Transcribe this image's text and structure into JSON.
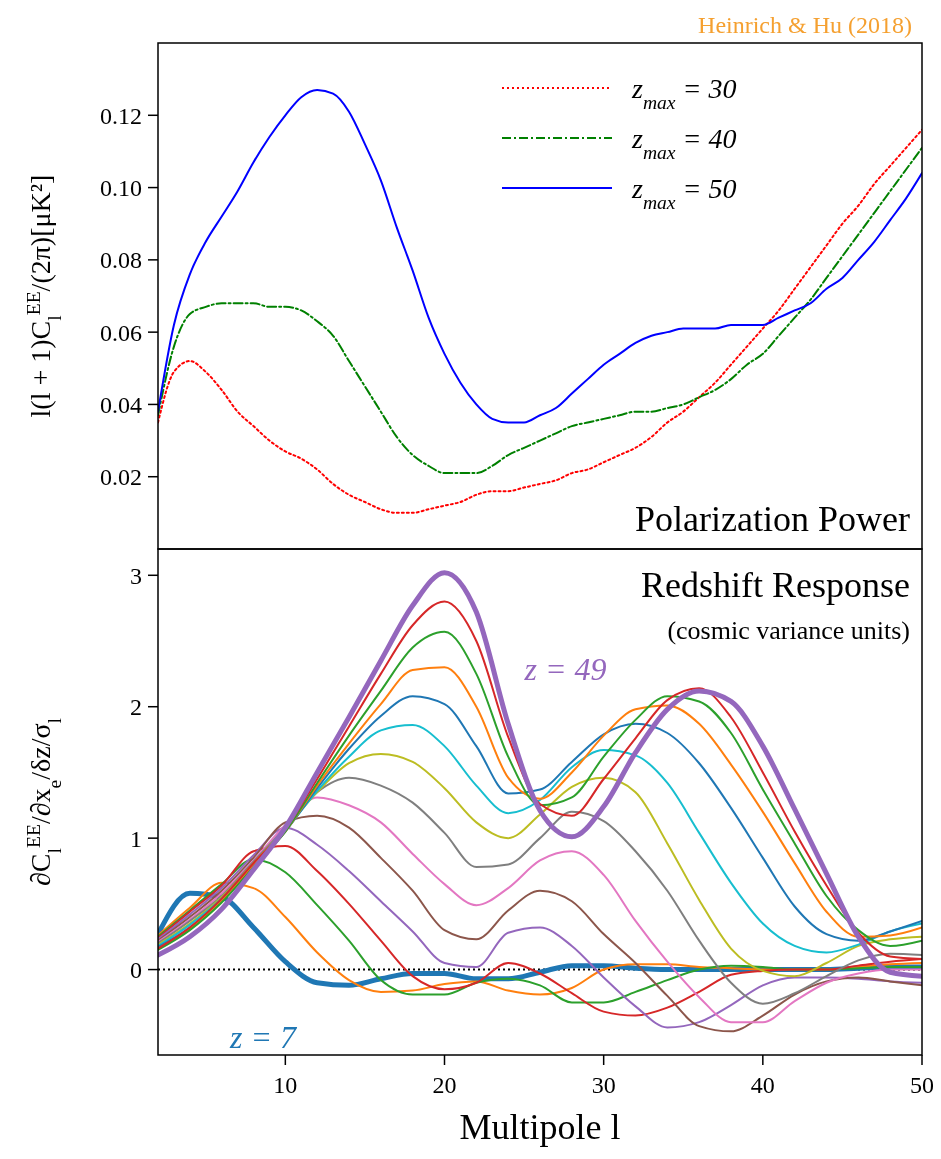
{
  "chart_data": [
    {
      "type": "line",
      "xlim": [
        2,
        50
      ],
      "ylim": [
        0,
        0.14
      ],
      "yticks": [
        0.02,
        0.04,
        0.06,
        0.08,
        {
          "value": 0.1,
          "label": "0.10"
        },
        0.12
      ],
      "tick_labels": "y",
      "ylabel": "l(l + 1)C$_{l}$$^{EE}$/(2π)[μK²]",
      "legend": "top right",
      "annotations": [
        "Heinrich & Hu (2018)",
        "Polarization Power"
      ],
      "x": [
        2,
        3,
        4,
        5,
        6,
        7,
        8,
        9,
        10,
        11,
        12,
        13,
        14,
        15,
        16,
        17,
        18,
        19,
        20,
        21,
        22,
        23,
        24,
        25,
        26,
        27,
        28,
        29,
        30,
        31,
        32,
        33,
        34,
        35,
        36,
        37,
        38,
        39,
        40,
        41,
        42,
        43,
        44,
        45,
        46,
        47,
        48,
        49,
        50
      ],
      "series": [
        {
          "name": "z$_{max}$ = 30",
          "color": "#ff0000",
          "line_style": "dotted",
          "values": [
            0.035,
            0.049,
            0.052,
            0.049,
            0.044,
            0.038,
            0.034,
            0.03,
            0.027,
            0.025,
            0.022,
            0.018,
            0.015,
            0.013,
            0.011,
            0.01,
            0.01,
            0.011,
            0.012,
            0.013,
            0.015,
            0.016,
            0.016,
            0.017,
            0.018,
            0.019,
            0.021,
            0.022,
            0.024,
            0.026,
            0.028,
            0.031,
            0.035,
            0.038,
            0.042,
            0.046,
            0.051,
            0.056,
            0.061,
            0.066,
            0.072,
            0.078,
            0.084,
            0.09,
            0.095,
            0.101,
            0.106,
            0.111,
            0.116
          ]
        },
        {
          "name": "z$_{max}$ = 40",
          "color": "#008000",
          "line_style": "dashdot",
          "values": [
            0.037,
            0.056,
            0.065,
            0.067,
            0.068,
            0.068,
            0.068,
            0.067,
            0.067,
            0.066,
            0.063,
            0.059,
            0.052,
            0.045,
            0.038,
            0.031,
            0.026,
            0.023,
            0.021,
            0.021,
            0.021,
            0.023,
            0.026,
            0.028,
            0.03,
            0.032,
            0.034,
            0.035,
            0.036,
            0.037,
            0.038,
            0.038,
            0.039,
            0.04,
            0.042,
            0.044,
            0.047,
            0.051,
            0.054,
            0.059,
            0.064,
            0.069,
            0.075,
            0.081,
            0.087,
            0.093,
            0.099,
            0.105,
            0.111
          ]
        },
        {
          "name": "z$_{max}$ = 50",
          "color": "#0000ff",
          "line_style": "solid",
          "values": [
            0.038,
            0.062,
            0.076,
            0.085,
            0.092,
            0.099,
            0.107,
            0.114,
            0.12,
            0.125,
            0.127,
            0.126,
            0.121,
            0.112,
            0.102,
            0.089,
            0.077,
            0.064,
            0.054,
            0.046,
            0.04,
            0.036,
            0.035,
            0.035,
            0.037,
            0.039,
            0.043,
            0.047,
            0.051,
            0.054,
            0.057,
            0.059,
            0.06,
            0.061,
            0.061,
            0.061,
            0.062,
            0.062,
            0.062,
            0.064,
            0.066,
            0.068,
            0.072,
            0.075,
            0.08,
            0.085,
            0.091,
            0.097,
            0.104
          ]
        }
      ]
    },
    {
      "type": "line",
      "xlim": [
        2,
        50
      ],
      "xticks": [
        10,
        20,
        30,
        40,
        50
      ],
      "ylim": [
        -0.65,
        3.2
      ],
      "yticks": [
        0,
        1,
        2,
        3
      ],
      "xlabel": "Multipole l",
      "ylabel": "∂C$_{l}$$^{EE}$/∂x$_{e}$/δz/σ$_{l}$",
      "legend": false,
      "annotations": [
        "Redshift Response",
        "(cosmic variance units)"
      ],
      "ref_lines": [
        {
          "axis": "y",
          "value": 0,
          "color": "#000000",
          "line_style": "dotted"
        }
      ],
      "x": [
        2,
        4,
        6,
        8,
        10,
        12,
        14,
        16,
        18,
        20,
        22,
        24,
        26,
        28,
        30,
        32,
        34,
        36,
        38,
        40,
        42,
        44,
        46,
        48,
        50
      ],
      "series": [
        {
          "name": "z = 7",
          "color": "#1f77b4",
          "values": [
            0.27,
            0.58,
            0.55,
            0.32,
            0.06,
            -0.1,
            -0.12,
            -0.07,
            -0.03,
            -0.03,
            -0.07,
            -0.07,
            -0.02,
            0.03,
            0.03,
            0.01,
            0.0,
            0.0,
            0.0,
            0.0,
            0.0,
            0.0,
            0.01,
            0.02,
            0.02
          ]
        },
        {
          "color": "#ff7f0e",
          "values": [
            0.26,
            0.47,
            0.66,
            0.62,
            0.4,
            0.13,
            -0.08,
            -0.17,
            -0.16,
            -0.11,
            -0.09,
            -0.16,
            -0.19,
            -0.14,
            0.0,
            0.04,
            0.04,
            0.02,
            0.01,
            0.0,
            0.0,
            0.0,
            0.02,
            0.04,
            0.05
          ]
        },
        {
          "color": "#2ca02c",
          "values": [
            0.25,
            0.45,
            0.65,
            0.84,
            0.74,
            0.49,
            0.22,
            -0.08,
            -0.19,
            -0.19,
            -0.1,
            -0.07,
            -0.12,
            -0.25,
            -0.25,
            -0.17,
            -0.08,
            0.0,
            0.03,
            0.02,
            0.0,
            0.0,
            0.01,
            0.02,
            0.02
          ]
        },
        {
          "color": "#d62728",
          "values": [
            0.24,
            0.44,
            0.64,
            0.9,
            0.94,
            0.75,
            0.5,
            0.22,
            -0.05,
            -0.15,
            -0.1,
            0.05,
            -0.03,
            -0.18,
            -0.32,
            -0.35,
            -0.29,
            -0.17,
            -0.04,
            -0.01,
            0.0,
            0.0,
            0.03,
            0.06,
            0.08
          ]
        },
        {
          "color": "#9467bd",
          "values": [
            0.23,
            0.42,
            0.62,
            0.87,
            1.08,
            0.95,
            0.75,
            0.52,
            0.29,
            0.05,
            0.02,
            0.28,
            0.32,
            0.18,
            -0.06,
            -0.28,
            -0.44,
            -0.4,
            -0.27,
            -0.12,
            -0.06,
            -0.06,
            -0.07,
            -0.09,
            -0.1
          ]
        },
        {
          "color": "#8c564b",
          "values": [
            0.22,
            0.4,
            0.6,
            0.85,
            1.12,
            1.17,
            1.08,
            0.85,
            0.6,
            0.3,
            0.23,
            0.45,
            0.6,
            0.52,
            0.27,
            0.05,
            -0.2,
            -0.43,
            -0.47,
            -0.35,
            -0.19,
            -0.09,
            -0.06,
            -0.09,
            -0.12
          ]
        },
        {
          "color": "#e377c2",
          "values": [
            0.21,
            0.38,
            0.58,
            0.83,
            1.1,
            1.31,
            1.25,
            1.12,
            0.88,
            0.65,
            0.49,
            0.62,
            0.83,
            0.9,
            0.72,
            0.37,
            0.06,
            -0.21,
            -0.4,
            -0.4,
            -0.24,
            -0.1,
            -0.03,
            0.0,
            0.0
          ]
        },
        {
          "color": "#7f7f7f",
          "values": [
            0.2,
            0.37,
            0.56,
            0.82,
            1.08,
            1.35,
            1.46,
            1.4,
            1.27,
            1.04,
            0.78,
            0.8,
            1.0,
            1.2,
            1.13,
            0.9,
            0.6,
            0.22,
            -0.1,
            -0.26,
            -0.18,
            -0.05,
            0.07,
            0.12,
            0.11
          ]
        },
        {
          "color": "#bcbd22",
          "values": [
            0.19,
            0.35,
            0.55,
            0.81,
            1.07,
            1.35,
            1.57,
            1.64,
            1.58,
            1.38,
            1.12,
            1.0,
            1.18,
            1.39,
            1.46,
            1.35,
            0.96,
            0.53,
            0.16,
            -0.01,
            -0.05,
            0.05,
            0.18,
            0.23,
            0.25
          ]
        },
        {
          "color": "#17becf",
          "values": [
            0.18,
            0.34,
            0.54,
            0.8,
            1.06,
            1.36,
            1.62,
            1.82,
            1.86,
            1.7,
            1.4,
            1.19,
            1.29,
            1.54,
            1.67,
            1.63,
            1.42,
            1.04,
            0.66,
            0.35,
            0.18,
            0.13,
            0.19,
            0.29,
            0.35
          ]
        },
        {
          "color": "#1f77b4",
          "values": [
            0.17,
            0.32,
            0.53,
            0.79,
            1.05,
            1.38,
            1.68,
            1.93,
            2.08,
            2.02,
            1.7,
            1.34,
            1.37,
            1.58,
            1.79,
            1.87,
            1.8,
            1.57,
            1.23,
            0.85,
            0.48,
            0.27,
            0.22,
            0.29,
            0.37
          ]
        },
        {
          "color": "#ff7f0e",
          "values": [
            0.16,
            0.31,
            0.52,
            0.79,
            1.05,
            1.4,
            1.72,
            2.02,
            2.28,
            2.3,
            2.0,
            1.46,
            1.3,
            1.5,
            1.78,
            1.98,
            2.01,
            1.87,
            1.56,
            1.2,
            0.81,
            0.44,
            0.25,
            0.26,
            0.32
          ]
        },
        {
          "color": "#2ca02c",
          "values": [
            0.15,
            0.3,
            0.51,
            0.78,
            1.05,
            1.42,
            1.78,
            2.12,
            2.45,
            2.57,
            2.25,
            1.62,
            1.25,
            1.31,
            1.62,
            1.9,
            2.08,
            2.04,
            1.8,
            1.37,
            0.96,
            0.56,
            0.3,
            0.18,
            0.22
          ]
        },
        {
          "color": "#d62728",
          "values": [
            0.16,
            0.32,
            0.54,
            0.81,
            1.07,
            1.45,
            1.85,
            2.25,
            2.62,
            2.8,
            2.5,
            1.77,
            1.26,
            1.17,
            1.45,
            1.76,
            2.05,
            2.14,
            1.92,
            1.5,
            1.05,
            0.64,
            0.28,
            0.1,
            0.08
          ]
        },
        {
          "name": "z = 49",
          "color": "#9467bd",
          "values": [
            0.11,
            0.25,
            0.46,
            0.76,
            1.08,
            1.5,
            1.92,
            2.35,
            2.77,
            3.02,
            2.72,
            1.87,
            1.21,
            1.01,
            1.24,
            1.65,
            1.98,
            2.12,
            2.04,
            1.7,
            1.22,
            0.73,
            0.25,
            -0.02,
            -0.05
          ]
        }
      ]
    }
  ]
}
